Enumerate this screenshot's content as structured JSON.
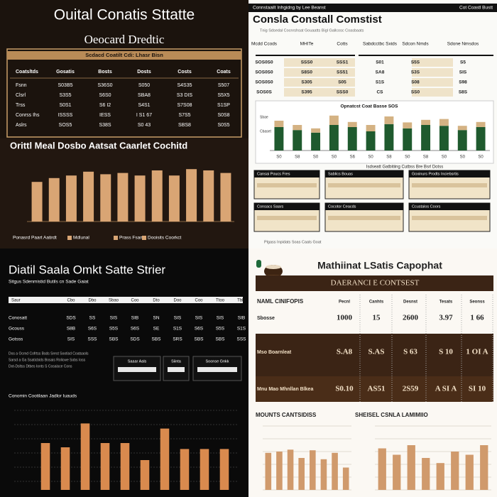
{
  "q1": {
    "title": "Ouital Conatis Sttatte",
    "subtitle": "Oeocard Dredtic",
    "table": {
      "caption": "Scdacd Coatilt Cdi: Lhasr Bisn",
      "header": [
        "Coatsltds",
        "Gosatis",
        "Bosts",
        "Dosts",
        "Costs",
        "Coats"
      ],
      "rows": [
        [
          "Fsnn",
          "S03B5",
          "S36S0",
          "S050",
          "S4S35",
          "S507"
        ],
        [
          "Clsrl",
          "S3S5",
          "S6S0",
          "SBA8",
          "S3 DIS",
          "S5X5"
        ],
        [
          "Trss",
          "S0S1",
          "S6 I2",
          "S4S1",
          "S7S08",
          "S1SP"
        ],
        [
          "Conrss Ihs",
          "ISSSS",
          "IESS",
          "I S1 67",
          "S7S5",
          "S0S8"
        ],
        [
          "Aslrs",
          "SOS5",
          "S38S",
          "S0 43",
          "SBS8",
          "S0S5"
        ]
      ]
    },
    "chart": {
      "title": "Orittl Meal Dosbo Aatsat Caarlet Cochitd",
      "values": [
        62,
        68,
        72,
        78,
        74,
        76,
        72,
        80,
        72,
        82,
        80,
        76
      ],
      "ylim": [
        0,
        100
      ],
      "color": "#d9a574",
      "legend": [
        "Ponasrd Paart Aatirdt",
        "Mdlunal",
        "Prass Fsam",
        "Dooisits Coorkct"
      ]
    }
  },
  "q2": {
    "banner": "Connstaailt Inhgidng by Lee Beanst",
    "banner_right": "Cot Coastl Bustt",
    "title": "Consla Constall Comstist",
    "subtitle": "Tnig Sdsedal Cocnrshsat Gouaatts Bigl Gallcosc Coasbaats",
    "table": {
      "header": [
        "Mcdd Ccods",
        "MHITe",
        "Cotts",
        "Sabdcctbc Sxids",
        "Sdcon Nmds",
        "Sdone Nmsdos"
      ],
      "rows": [
        [
          "SOS0S0",
          "SSS0",
          "SSS1",
          "S01",
          "S5S",
          "S5"
        ],
        [
          "SOS0S0",
          "S8S0",
          "SS51",
          "SA8",
          "S3S",
          "SIS"
        ],
        [
          "SOS0S0",
          "S305",
          "S05",
          "S1S",
          "S08",
          "S98"
        ],
        [
          "SOS0S",
          "S395",
          "SSS0",
          "CS",
          "SS0",
          "S8S"
        ]
      ]
    },
    "chart": {
      "title": "Opnatcst Coat Basse SOS",
      "ylim": [
        0,
        100
      ],
      "categories": [
        "S0",
        "S8",
        "S0",
        "S0",
        "S6",
        "S0",
        "S8",
        "S0",
        "S8",
        "S0",
        "S0",
        "S0"
      ],
      "series": [
        {
          "name": "Cbaset",
          "color": "#1f5a2e",
          "values": [
            55,
            48,
            42,
            60,
            55,
            45,
            62,
            52,
            60,
            58,
            48,
            55
          ]
        },
        {
          "name": "Sbae",
          "color": "#d4b283",
          "values": [
            15,
            12,
            10,
            22,
            12,
            15,
            18,
            14,
            12,
            16,
            10,
            12
          ]
        }
      ]
    },
    "note": "Isdseatt Gatbitiing Cutbss Bre Bsrl Dotss",
    "cards": [
      "Cansai Poucs Fres",
      "Sablics Bouas",
      "Goxinurs Prodts Inciebsrtis",
      "Consacs Saars",
      "Cocotor Ceacds",
      "Ccustalos Coors"
    ],
    "footer": "Plgass Inpidats Soas Caals Goat"
  },
  "q3": {
    "title": "Diatil Saala Omkt Satte Strier",
    "subtitle": "Sitgus Sdenmistid Butils cn Sade Gaiat",
    "table": {
      "header": [
        "Saur",
        "Cbo",
        "Dbo",
        "Sbao",
        "Coo",
        "Dto",
        "Doo",
        "Coo",
        "Ttoo",
        "Tblo"
      ],
      "rows": [
        [
          "Conosatt",
          "SDS",
          "SS",
          "SIS",
          "SIB",
          "SN",
          "SIS",
          "SIS",
          "SIS",
          "SIB"
        ],
        [
          "Gcouss",
          "S8B",
          "S6S",
          "S5S",
          "S6S",
          "SE",
          "S1S",
          "S6S",
          "S5S",
          "S1S"
        ],
        [
          "Gotsss",
          "SIS",
          "SSS",
          "SBS",
          "SDS",
          "SBS",
          "SRS",
          "SBS",
          "SBS",
          "SSS"
        ]
      ]
    },
    "desc": [
      "Dos a Ocrnd Cofrtss Bsds Srest Sootisd Coatsaols",
      "Sarsd a Ga Ssaticbids Bosais Rolicwe Sobs Ioss",
      "Dot-Dsltss Dtbes Ionts S Cosaisce Cons"
    ],
    "boxes": [
      "Saaar Aals",
      "Siinta",
      "Soonse Gnkk"
    ],
    "chart": {
      "title": "Conomin Cootilaan Jadlor Iuauds",
      "values": [
        55,
        50,
        78,
        55,
        55,
        35,
        72,
        48,
        48,
        48
      ],
      "ylim": [
        0,
        100
      ],
      "color": "#d98a4e"
    }
  },
  "q4": {
    "title": "Mathiinat LSatis Capophat",
    "banner": "DAERANCI E CONTSEST",
    "table": {
      "header": [
        "NAML CINIFOPIS",
        "Pecnl",
        "Canhts",
        "Desnst",
        "Tesats",
        "Seonss"
      ],
      "rows": [
        [
          "Sbosse",
          "1000",
          "15",
          "2600",
          "3.97",
          "1 66"
        ],
        [
          "Mso Boarnleat",
          "S.A8",
          "S.AS",
          "S 63",
          "S 10",
          "1 OI A"
        ],
        [
          "Mnu Mao Mhnllan Blkea",
          "S0.10",
          "AS51",
          "2S59",
          "A SI A",
          "SI 10"
        ]
      ]
    },
    "charts": [
      {
        "title": "MOUNTS CANTSIDISS",
        "values": [
          58,
          60,
          63,
          50,
          62,
          48,
          58,
          35
        ],
        "ylim": [
          0,
          100
        ],
        "color": "#d09a6c"
      },
      {
        "title": "SHEISEL CSNLA LAMIMIIO",
        "values": [
          65,
          55,
          70,
          50,
          42,
          60,
          55,
          70
        ],
        "ylim": [
          0,
          100
        ],
        "color": "#d09a6c"
      }
    ]
  }
}
